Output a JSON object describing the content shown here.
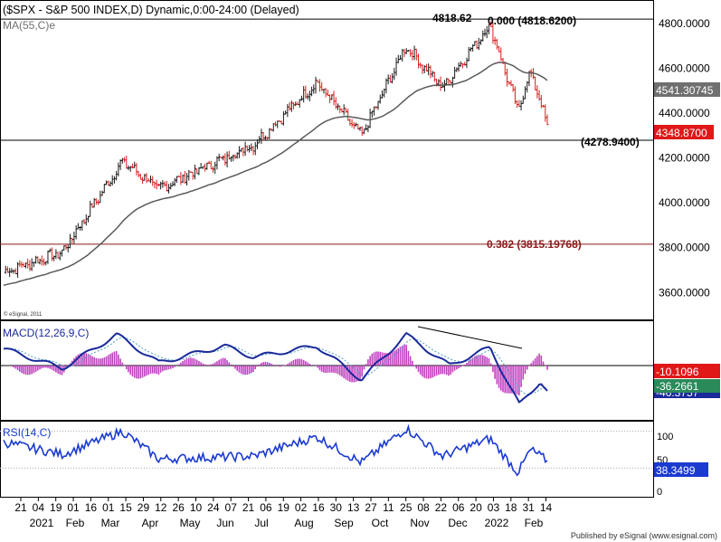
{
  "header": {
    "title": "($SPX - S&P 500 INDEX,D) Dynamic,0:00-24:00 (Delayed)",
    "ma_label": "MA(55,C)e",
    "watermark": "© eSignal, 2011"
  },
  "footer": {
    "text": "Published by eSignal (www.esignal.com)"
  },
  "colors": {
    "up": "#1a1a1a",
    "down": "#d81e1e",
    "ma": "#5a5a5a",
    "macd": "#1a2a9a",
    "signal": "#4aa0c0",
    "hist": "#c040c0",
    "rsi": "#1a3ad0",
    "fib": "#8b1a1a",
    "price_tag_bg": "#e01818",
    "ma_tag_bg": "#707070",
    "macd_tag_bg": "#e01818",
    "signal_tag_bg": "#2a8a5a",
    "rsi_tag_bg": "#1a3ad0"
  },
  "chart_data": [
    {
      "type": "candlestick",
      "title": "$SPX - S&P 500 INDEX, Daily",
      "ylim": [
        3480,
        4900
      ],
      "yticks": [
        "3600.0000",
        "3800.0000",
        "4000.0000",
        "4200.0000",
        "4400.0000",
        "4600.0000",
        "4800.0000"
      ],
      "key_points": [
        {
          "date": "2021-01-21",
          "close": 3690
        },
        {
          "date": "2021-03-04",
          "close": 3780
        },
        {
          "date": "2021-04-16",
          "close": 4185
        },
        {
          "date": "2021-05-12",
          "close": 4063
        },
        {
          "date": "2021-07-19",
          "close": 4259
        },
        {
          "date": "2021-09-02",
          "close": 4537
        },
        {
          "date": "2021-10-04",
          "close": 4300
        },
        {
          "date": "2021-11-05",
          "close": 4698
        },
        {
          "date": "2021-12-01",
          "close": 4513
        },
        {
          "date": "2022-01-04",
          "close": 4793
        },
        {
          "date": "2022-01-24",
          "close": 4410
        },
        {
          "date": "2022-02-02",
          "close": 4589
        },
        {
          "date": "2022-02-14",
          "close": 4348.87
        }
      ],
      "ma": {
        "name": "MA(55,C)e",
        "last": 4541.30745
      },
      "annotations": {
        "high_label": "4818.62",
        "fib_0": {
          "label": "0.000 (4818.6200)",
          "value": 4818.62
        },
        "fib_382": {
          "label": "0.382 (3815.19768)",
          "value": 3815.19768
        },
        "support": {
          "label": "(4278.9400)",
          "value": 4278.94
        }
      },
      "last_price": "4348.8700",
      "ma_value": "4541.30745"
    },
    {
      "type": "line",
      "title": "MACD(12,26,9,C)",
      "series": [
        {
          "name": "MACD"
        },
        {
          "name": "Signal"
        },
        {
          "name": "Histogram"
        }
      ],
      "values": {
        "hist": "-10.1096",
        "signal": "-36.2661",
        "macd": "-46.3757"
      },
      "macd_key_points": [
        {
          "date": "2021-01-21",
          "value": 30
        },
        {
          "date": "2021-03-04",
          "value": -5
        },
        {
          "date": "2021-04-12",
          "value": 55
        },
        {
          "date": "2021-05-12",
          "value": 5
        },
        {
          "date": "2021-06-28",
          "value": 35
        },
        {
          "date": "2021-07-19",
          "value": 15
        },
        {
          "date": "2021-09-02",
          "value": 35
        },
        {
          "date": "2021-10-04",
          "value": -25
        },
        {
          "date": "2021-11-05",
          "value": 55
        },
        {
          "date": "2021-12-06",
          "value": 0
        },
        {
          "date": "2022-01-04",
          "value": 32
        },
        {
          "date": "2022-01-25",
          "value": -70
        },
        {
          "date": "2022-02-09",
          "value": -28
        },
        {
          "date": "2022-02-14",
          "value": -46
        }
      ]
    },
    {
      "type": "line",
      "title": "RSI(14,C)",
      "ylim": [
        0,
        100
      ],
      "yticks": [
        "0",
        "50",
        "100"
      ],
      "last_value": "38.3499",
      "key_points": [
        {
          "date": "2021-01-21",
          "value": 58
        },
        {
          "date": "2021-03-04",
          "value": 45
        },
        {
          "date": "2021-04-16",
          "value": 70
        },
        {
          "date": "2021-05-12",
          "value": 40
        },
        {
          "date": "2021-07-19",
          "value": 43
        },
        {
          "date": "2021-09-02",
          "value": 64
        },
        {
          "date": "2021-10-04",
          "value": 36
        },
        {
          "date": "2021-11-05",
          "value": 73
        },
        {
          "date": "2021-12-01",
          "value": 43
        },
        {
          "date": "2022-01-04",
          "value": 62
        },
        {
          "date": "2022-01-24",
          "value": 25
        },
        {
          "date": "2022-02-02",
          "value": 50
        },
        {
          "date": "2022-02-14",
          "value": 38.35
        }
      ]
    }
  ],
  "x_axis": {
    "day_ticks": [
      "21",
      "04",
      "19",
      "01",
      "16",
      "01",
      "15",
      "29",
      "12",
      "26",
      "10",
      "24",
      "07",
      "21",
      "06",
      "19",
      "02",
      "16",
      "30",
      "13",
      "27",
      "11",
      "25",
      "08",
      "22",
      "06",
      "20",
      "03",
      "18",
      "31",
      "14"
    ],
    "month_labels": [
      "2021",
      "Feb",
      "Mar",
      "Apr",
      "May",
      "Jun",
      "Jul",
      "Aug",
      "Sep",
      "Oct",
      "Nov",
      "Dec",
      "2022",
      "Feb"
    ]
  }
}
